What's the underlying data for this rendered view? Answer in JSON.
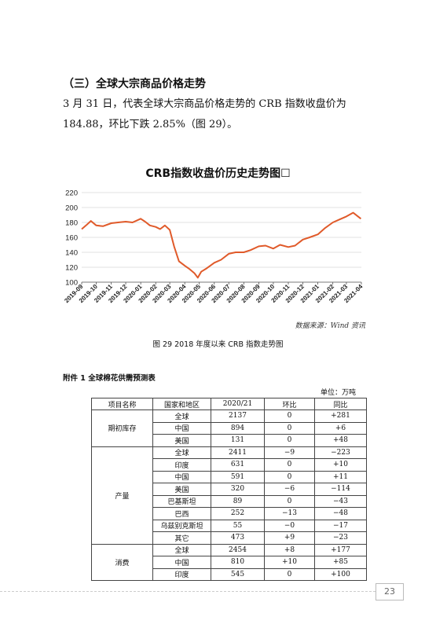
{
  "section_title": "（三）全球大宗商品价格走势",
  "paragraph": {
    "line1": "3 月 31 日，代表全球大宗商品价格走势的 CRB 指数收盘价为",
    "line2": "184.88，环比下跌 2.85%（图 29）。"
  },
  "figure": {
    "title": "CRB指数收盘价历史走势图☐",
    "source": "数据来源：Wind 资讯",
    "caption": "图 29    2018 年度以来 CRB 指数走势图"
  },
  "chart_data": {
    "type": "line",
    "title": "CRB指数收盘价历史走势图☐",
    "ylim": [
      100,
      220
    ],
    "yticks": [
      100,
      120,
      140,
      160,
      180,
      200,
      220
    ],
    "xticks": [
      "2019-09",
      "2019-10",
      "2019-11",
      "2019-12",
      "2020-01",
      "2020-02",
      "2020-03",
      "2020-04",
      "2020-05",
      "2020-06",
      "2020-07",
      "2020-08",
      "2020-09",
      "2020-10",
      "2020-11",
      "2020-12",
      "2021-01",
      "2021-02",
      "2021-03",
      "2021-04"
    ],
    "grid": "horizontal",
    "series": [
      {
        "color": "#e05a2a",
        "x": [
          "2019-09-01",
          "2019-09-10",
          "2019-09-20",
          "2019-10-01",
          "2019-10-15",
          "2019-11-01",
          "2019-11-15",
          "2019-12-01",
          "2019-12-15",
          "2020-01-01",
          "2020-01-10",
          "2020-01-20",
          "2020-02-01",
          "2020-02-10",
          "2020-02-20",
          "2020-03-01",
          "2020-03-10",
          "2020-03-20",
          "2020-04-01",
          "2020-04-10",
          "2020-04-21",
          "2020-04-28",
          "2020-05-05",
          "2020-05-15",
          "2020-06-01",
          "2020-06-15",
          "2020-07-01",
          "2020-07-15",
          "2020-08-01",
          "2020-08-15",
          "2020-09-01",
          "2020-09-15",
          "2020-10-01",
          "2020-10-15",
          "2020-11-01",
          "2020-11-15",
          "2020-12-01",
          "2020-12-15",
          "2021-01-01",
          "2021-01-15",
          "2021-02-01",
          "2021-02-15",
          "2021-03-01",
          "2021-03-15",
          "2021-03-31"
        ],
        "values": [
          171,
          176,
          182,
          176,
          175,
          179,
          180,
          181,
          180,
          185,
          181,
          176,
          174,
          171,
          176,
          170,
          148,
          128,
          122,
          118,
          112,
          106,
          114,
          118,
          126,
          130,
          138,
          140,
          140,
          143,
          148,
          149,
          145,
          150,
          147,
          149,
          157,
          160,
          164,
          172,
          180,
          184,
          188,
          193,
          185
        ]
      }
    ]
  },
  "annex_title": "附件 1   全球棉花供需预测表",
  "unit": "单位：万吨",
  "table": {
    "headers": [
      "项目名称",
      "国家和地区",
      "2020/21",
      "环比",
      "同比"
    ],
    "groups": [
      {
        "name": "期初库存",
        "rows": [
          [
            "全球",
            "2137",
            "0",
            "+281"
          ],
          [
            "中国",
            "894",
            "0",
            "+6"
          ],
          [
            "美国",
            "131",
            "0",
            "+48"
          ]
        ]
      },
      {
        "name": "产量",
        "rows": [
          [
            "全球",
            "2411",
            "−9",
            "−223"
          ],
          [
            "印度",
            "631",
            "0",
            "+10"
          ],
          [
            "中国",
            "591",
            "0",
            "+11"
          ],
          [
            "美国",
            "320",
            "−6",
            "−114"
          ],
          [
            "巴基斯坦",
            "89",
            "0",
            "−43"
          ],
          [
            "巴西",
            "252",
            "−13",
            "−48"
          ],
          [
            "乌兹别克斯坦",
            "55",
            "−0",
            "−17"
          ],
          [
            "其它",
            "473",
            "+9",
            "−23"
          ]
        ]
      },
      {
        "name": "消费",
        "rows": [
          [
            "全球",
            "2454",
            "+8",
            "+177"
          ],
          [
            "中国",
            "810",
            "+10",
            "+85"
          ],
          [
            "印度",
            "545",
            "0",
            "+100"
          ]
        ]
      }
    ]
  },
  "page_number": "23"
}
